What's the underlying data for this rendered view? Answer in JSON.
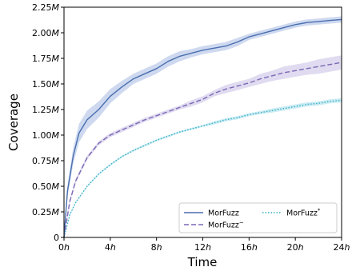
{
  "chart_data": {
    "type": "line",
    "xlabel": "Time",
    "ylabel": "Coverage",
    "xlim": [
      0,
      24
    ],
    "ylim": [
      0,
      2.25
    ],
    "x_ticks": [
      0,
      4,
      8,
      12,
      16,
      20,
      24
    ],
    "x_tick_labels": [
      "0h",
      "4h",
      "8h",
      "12h",
      "16h",
      "20h",
      "24h"
    ],
    "y_ticks": [
      0,
      0.25,
      0.5,
      0.75,
      1.0,
      1.25,
      1.5,
      1.75,
      2.0,
      2.25
    ],
    "y_tick_labels": [
      "0",
      "0.25M",
      "0.50M",
      "0.75M",
      "1.00M",
      "1.25M",
      "1.50M",
      "1.75M",
      "2.00M",
      "2.25M"
    ],
    "legend_position": "lower-right",
    "grid": false,
    "series": [
      {
        "name": "MorFuzz",
        "legend_label": "MorFuzz",
        "color": "#4a6fae",
        "band_color": "#aebfe6",
        "style": "solid",
        "x": [
          0,
          0.3,
          0.8,
          1.3,
          2,
          3,
          4,
          5,
          6,
          7,
          8,
          9,
          10,
          11,
          12,
          13,
          14,
          15,
          16,
          17,
          18,
          19,
          20,
          21,
          22,
          23,
          24
        ],
        "y": [
          0,
          0.45,
          0.8,
          1.02,
          1.15,
          1.25,
          1.38,
          1.47,
          1.55,
          1.6,
          1.65,
          1.72,
          1.77,
          1.8,
          1.83,
          1.85,
          1.87,
          1.91,
          1.96,
          1.99,
          2.02,
          2.05,
          2.08,
          2.1,
          2.11,
          2.12,
          2.13
        ],
        "band": [
          0,
          0.06,
          0.08,
          0.09,
          0.09,
          0.08,
          0.07,
          0.06,
          0.05,
          0.05,
          0.05,
          0.05,
          0.05,
          0.04,
          0.04,
          0.04,
          0.04,
          0.04,
          0.03,
          0.03,
          0.03,
          0.03,
          0.03,
          0.03,
          0.03,
          0.03,
          0.03
        ]
      },
      {
        "name": "MorFuzz-",
        "legend_label": "MorFuzz",
        "legend_sup": "−",
        "color": "#7b68b5",
        "band_color": "#cbc3e6",
        "style": "dashed",
        "x": [
          0,
          0.5,
          1,
          2,
          3,
          4,
          5,
          6,
          7,
          8,
          9,
          10,
          11,
          12,
          13,
          14,
          15,
          16,
          17,
          18,
          19,
          20,
          21,
          22,
          23,
          24
        ],
        "y": [
          0,
          0.35,
          0.55,
          0.78,
          0.92,
          1.0,
          1.05,
          1.1,
          1.15,
          1.19,
          1.23,
          1.27,
          1.31,
          1.35,
          1.41,
          1.45,
          1.48,
          1.51,
          1.55,
          1.58,
          1.61,
          1.63,
          1.65,
          1.67,
          1.69,
          1.71
        ],
        "band": [
          0,
          0.02,
          0.02,
          0.02,
          0.02,
          0.02,
          0.02,
          0.02,
          0.02,
          0.02,
          0.02,
          0.02,
          0.03,
          0.03,
          0.03,
          0.04,
          0.04,
          0.04,
          0.05,
          0.05,
          0.06,
          0.06,
          0.06,
          0.07,
          0.07,
          0.07
        ]
      },
      {
        "name": "MorFuzz*",
        "legend_label": "MorFuzz",
        "legend_sup": "*",
        "color": "#3ab0c8",
        "band_color": "#a9e0ea",
        "style": "dotted",
        "x": [
          0,
          0.5,
          1,
          2,
          3,
          4,
          5,
          6,
          7,
          8,
          9,
          10,
          11,
          12,
          13,
          14,
          15,
          16,
          17,
          18,
          19,
          20,
          21,
          22,
          23,
          24
        ],
        "y": [
          0,
          0.22,
          0.34,
          0.5,
          0.62,
          0.71,
          0.79,
          0.85,
          0.9,
          0.95,
          0.99,
          1.03,
          1.06,
          1.09,
          1.12,
          1.15,
          1.17,
          1.2,
          1.22,
          1.24,
          1.26,
          1.28,
          1.3,
          1.31,
          1.33,
          1.34
        ],
        "band": [
          0,
          0.01,
          0.01,
          0.01,
          0.01,
          0.01,
          0.01,
          0.01,
          0.01,
          0.01,
          0.01,
          0.01,
          0.01,
          0.01,
          0.015,
          0.015,
          0.015,
          0.015,
          0.015,
          0.02,
          0.02,
          0.02,
          0.02,
          0.02,
          0.02,
          0.02
        ]
      }
    ]
  }
}
